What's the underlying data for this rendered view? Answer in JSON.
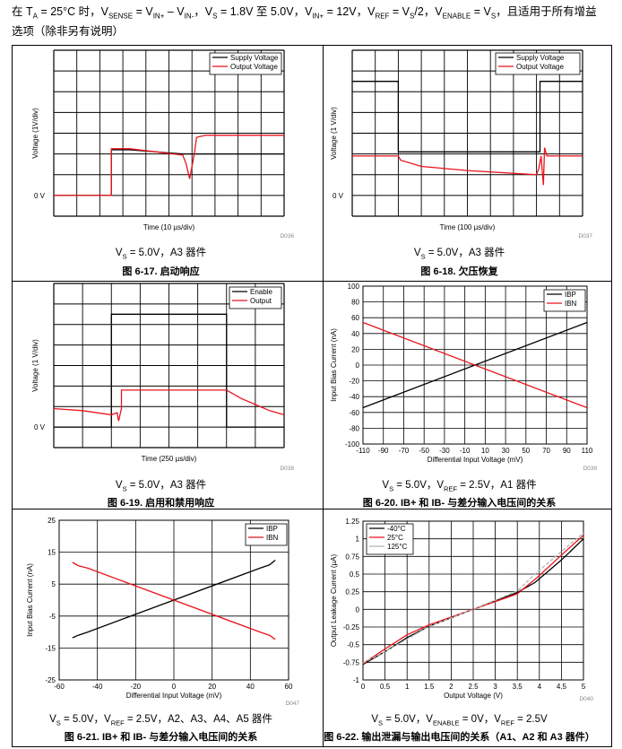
{
  "header": {
    "line1_prefix": "在 ",
    "line1_text": "T",
    "ta_sub": "A",
    "ta_value": " = 25°C 时，V",
    "vsense_sub": "SENSE",
    "eq1": " = V",
    "vinp_sub": "IN+",
    "minus": " – V",
    "vinm_sub": "IN-",
    "vs_pre": "，V",
    "vs_sub": "S",
    "vs_val": " = 1.8V 至 5.0V，V",
    "vinp2_sub": "IN+",
    "vinp2_val": " = 12V，V",
    "vref_sub": "REF",
    "vref_val": " = V",
    "vs2_sub": "S",
    "vs2_val": "/2，V",
    "ven_sub": "ENABLE",
    "ven_val": " = V",
    "vs3_sub": "S",
    "tail": "，且适用于所有增益",
    "line2": "选项（除非另有说明）"
  },
  "figures": [
    {
      "id": "fig-6-17",
      "caption": "图 6-17. 启动响应",
      "condition": "V_S = 5.0V，A3 器件",
      "cond_pre": "V",
      "cond_sub": "S",
      "cond_rest": " = 5.0V，A3 器件",
      "tag": "D036"
    },
    {
      "id": "fig-6-18",
      "caption": "图 6-18. 欠压恢复",
      "cond_pre": "V",
      "cond_sub": "S",
      "cond_rest": " = 5.0V，A3 器件",
      "tag": "D037"
    },
    {
      "id": "fig-6-19",
      "caption": "图 6-19. 启用和禁用响应",
      "cond_pre": "V",
      "cond_sub": "S",
      "cond_rest": " = 5.0V，A3 器件",
      "tag": "D038"
    },
    {
      "id": "fig-6-20",
      "caption": "图 6-20. IB+ 和 IB- 与差分输入电压间的关系",
      "cond_pre": "V",
      "cond_sub": "S",
      "cond_mid": " = 5.0V，V",
      "cond_sub2": "REF",
      "cond_rest": " = 2.5V，A1 器件",
      "tag": "D039"
    },
    {
      "id": "fig-6-21",
      "caption": "图 6-21. IB+ 和 IB- 与差分输入电压间的关系",
      "cond_pre": "V",
      "cond_sub": "S",
      "cond_mid": " = 5.0V，V",
      "cond_sub2": "REF",
      "cond_rest": " = 2.5V，A2、A3、A4、A5 器件",
      "tag": "D047"
    },
    {
      "id": "fig-6-22",
      "caption": "图 6-22. 输出泄漏与输出电压间的关系（A1、A2 和 A3 器件）",
      "cond_pre": "V",
      "cond_sub": "S",
      "cond_mid": " = 5.0V，V",
      "cond_sub2": "ENABLE",
      "cond_mid2": " = 0V，V",
      "cond_sub3": "REF",
      "cond_rest": " = 2.5V",
      "tag": "D040"
    }
  ],
  "chart_data": [
    {
      "type": "line",
      "title": "Startup Response",
      "xlabel": "Time (10 µs/div)",
      "ylabel": "Voltage (1V/div)",
      "zero_label": "0 V",
      "x_divisions": 10,
      "y_divisions": 8,
      "legend": [
        "Supply Voltage",
        "Output Voltage"
      ],
      "colors": {
        "Supply Voltage": "#000000",
        "Output Voltage": "#e8141c"
      },
      "series": [
        {
          "name": "Supply Voltage",
          "x": [
            0,
            2.5,
            2.5,
            3.3,
            5.6,
            10
          ],
          "y": [
            0,
            0,
            2.2,
            2.2,
            2.0,
            2.0
          ]
        },
        {
          "name": "Output Voltage",
          "x": [
            0,
            2.5,
            2.5,
            3.3,
            5.6,
            5.75,
            5.9,
            6.1,
            6.2,
            6.6,
            10
          ],
          "y": [
            0,
            0,
            2.25,
            2.25,
            1.95,
            1.5,
            0.8,
            2.0,
            2.8,
            2.9,
            2.9
          ]
        }
      ]
    },
    {
      "type": "line",
      "title": "Undervoltage Recovery",
      "xlabel": "Time (100 µs/div)",
      "ylabel": "Voltage (1 V/div)",
      "zero_label": "0 V",
      "x_divisions": 10,
      "y_divisions": 8,
      "legend": [
        "Supply Voltage",
        "Output Voltage"
      ],
      "colors": {
        "Supply Voltage": "#000000",
        "Output Voltage": "#e8141c"
      },
      "series": [
        {
          "name": "Supply Voltage",
          "x": [
            0,
            2.0,
            2.0,
            8.15,
            8.15,
            10
          ],
          "y": [
            5.5,
            5.5,
            2.1,
            2.1,
            5.5,
            5.5
          ]
        },
        {
          "name": "Output Voltage",
          "x": [
            0,
            2.0,
            2.1,
            3.0,
            5.0,
            8.0,
            8.1,
            8.2,
            8.3,
            8.35,
            8.45,
            10
          ],
          "y": [
            1.9,
            1.9,
            1.7,
            1.4,
            1.2,
            1.0,
            1.3,
            1.9,
            0.5,
            2.3,
            1.9,
            1.9
          ]
        }
      ]
    },
    {
      "type": "line",
      "title": "Enable and Disable Response",
      "xlabel": "Time (250 µs/div)",
      "ylabel": "Voltage (1 V/div)",
      "zero_label": "0 V",
      "x_divisions": 8,
      "y_divisions": 8,
      "legend": [
        "Enable",
        "Output"
      ],
      "colors": {
        "Enable": "#000000",
        "Output": "#e8141c"
      },
      "series": [
        {
          "name": "Enable",
          "x": [
            0,
            2.0,
            2.0,
            6.0,
            6.0,
            8
          ],
          "y": [
            0,
            0,
            5.5,
            5.5,
            0,
            0
          ]
        },
        {
          "name": "Output",
          "x": [
            0,
            1.0,
            2.0,
            2.2,
            2.25,
            2.35,
            2.35,
            6.0,
            6.5,
            7.0,
            7.5,
            8
          ],
          "y": [
            0.9,
            0.8,
            0.6,
            0.7,
            0.3,
            0.9,
            1.8,
            1.8,
            1.4,
            1.1,
            0.8,
            0.6
          ]
        }
      ]
    },
    {
      "type": "line",
      "title": "IB+ and IB- vs Differential Input Voltage",
      "xlabel": "Differential Input Voltage (mV)",
      "ylabel": "Input Bias Current (nA)",
      "xlim": [
        -110,
        110
      ],
      "ylim": [
        -100,
        100
      ],
      "xticks": [
        -110,
        -90,
        -70,
        -50,
        -30,
        -10,
        10,
        30,
        50,
        70,
        90,
        110
      ],
      "yticks": [
        100,
        80,
        60,
        40,
        20,
        0,
        -20,
        -40,
        -60,
        -80,
        -100
      ],
      "legend": [
        "IBP",
        "IBN"
      ],
      "colors": {
        "IBP": "#000000",
        "IBN": "#e8141c"
      },
      "series": [
        {
          "name": "IBP",
          "x": [
            -110,
            110
          ],
          "y": [
            -54,
            54
          ]
        },
        {
          "name": "IBN",
          "x": [
            -110,
            110
          ],
          "y": [
            54,
            -54
          ]
        }
      ]
    },
    {
      "type": "line",
      "title": "IB+ and IB- vs Differential Input Voltage",
      "xlabel": "Differential Input Voltage (mV)",
      "ylabel": "Input Bias Current (nA)",
      "xlim": [
        -60,
        60
      ],
      "ylim": [
        -25,
        25
      ],
      "xticks": [
        -60,
        -40,
        -20,
        0,
        20,
        40,
        60
      ],
      "yticks": [
        25,
        15,
        5,
        -5,
        -15,
        -25
      ],
      "legend": [
        "IBP",
        "IBN"
      ],
      "colors": {
        "IBP": "#000000",
        "IBN": "#e8141c"
      },
      "series": [
        {
          "name": "IBP",
          "x": [
            -53,
            -50,
            -45,
            45,
            50,
            53
          ],
          "y": [
            -11.8,
            -11.0,
            -10.0,
            10.0,
            11.0,
            12.5
          ]
        },
        {
          "name": "IBN",
          "x": [
            -53,
            -50,
            -45,
            45,
            50,
            53
          ],
          "y": [
            11.8,
            10.8,
            10.0,
            -10.0,
            -11.0,
            -12.3
          ]
        }
      ]
    },
    {
      "type": "line",
      "title": "Output Leakage vs Output Voltage",
      "xlabel": "Output Voltage (V)",
      "ylabel": "Output Leakage Current (µA)",
      "xlim": [
        0,
        5
      ],
      "ylim": [
        -1,
        1.25
      ],
      "xticks": [
        0,
        0.5,
        1,
        1.5,
        2,
        2.5,
        3,
        3.5,
        4,
        4.5,
        5
      ],
      "yticks": [
        1.25,
        1,
        0.75,
        0.5,
        0.25,
        0,
        -0.25,
        -0.5,
        -0.75,
        -1
      ],
      "legend": [
        "-40°C",
        "25°C",
        "125°C"
      ],
      "colors": {
        "-40°C": "#000000",
        "25°C": "#e8141c",
        "125°C": "#b3b3b3"
      },
      "series": [
        {
          "name": "-40°C",
          "x": [
            0,
            0.5,
            1.0,
            1.5,
            2.5,
            3.5,
            3.9,
            4.5,
            5.0
          ],
          "y": [
            -0.78,
            -0.6,
            -0.4,
            -0.24,
            0.0,
            0.24,
            0.38,
            0.7,
            1.0
          ]
        },
        {
          "name": "25°C",
          "x": [
            0,
            0.5,
            1.0,
            1.5,
            2.5,
            3.5,
            3.95,
            4.5,
            5.0
          ],
          "y": [
            -0.77,
            -0.56,
            -0.36,
            -0.22,
            0.0,
            0.22,
            0.45,
            0.77,
            1.05
          ]
        },
        {
          "name": "125°C",
          "x": [
            0,
            0.5,
            1.0,
            1.5,
            2.5,
            3.5,
            3.9,
            4.5,
            5.0
          ],
          "y": [
            -0.76,
            -0.6,
            -0.42,
            -0.24,
            0.0,
            0.26,
            0.5,
            0.82,
            1.08
          ]
        }
      ]
    }
  ]
}
